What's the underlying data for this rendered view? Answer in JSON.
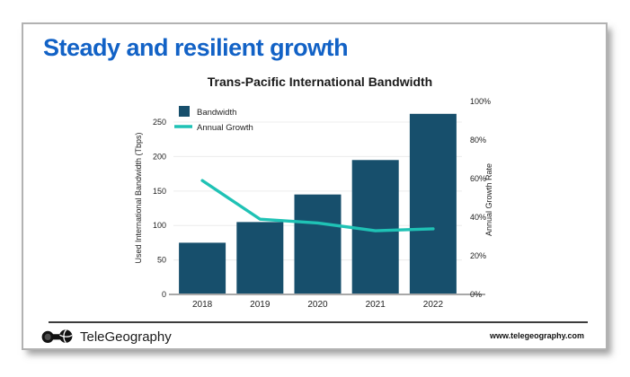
{
  "slide": {
    "title": "Steady and resilient growth"
  },
  "chart_data": {
    "type": "combo-bar-line",
    "title": "Trans-Pacific International Bandwidth",
    "categories": [
      "2018",
      "2019",
      "2020",
      "2021",
      "2022"
    ],
    "series": [
      {
        "name": "Bandwidth",
        "type": "bar",
        "yaxis": "left",
        "color": "#174f6c",
        "values": [
          75,
          105,
          145,
          195,
          262
        ]
      },
      {
        "name": "Annual Growth",
        "type": "line",
        "yaxis": "right",
        "color": "#1fc2b5",
        "values": [
          59,
          39,
          37,
          33,
          34
        ]
      }
    ],
    "left_axis": {
      "label": "Used International Bandwidth (Tbps)",
      "ticks": [
        0,
        50,
        100,
        150,
        200,
        250
      ],
      "range": [
        0,
        280
      ]
    },
    "right_axis": {
      "label": "Annual Growth Rate",
      "ticks": [
        "0%",
        "20%",
        "40%",
        "60%",
        "80%",
        "100%"
      ],
      "tick_values": [
        0,
        20,
        40,
        60,
        80,
        100
      ],
      "range": [
        0,
        100
      ]
    },
    "legend": {
      "position": "top-left",
      "entries": [
        "Bandwidth",
        "Annual Growth"
      ]
    },
    "grid": true
  },
  "footer": {
    "brand": "TeleGeography",
    "brand_icon": "telegeography-logo-icon",
    "website": "www.telegeography.com"
  },
  "colors": {
    "title": "#1262c6",
    "bar": "#174f6c",
    "line": "#1fc2b5",
    "gridline": "#ececec",
    "baseline": "#a8a8a8",
    "text": "#222222"
  }
}
